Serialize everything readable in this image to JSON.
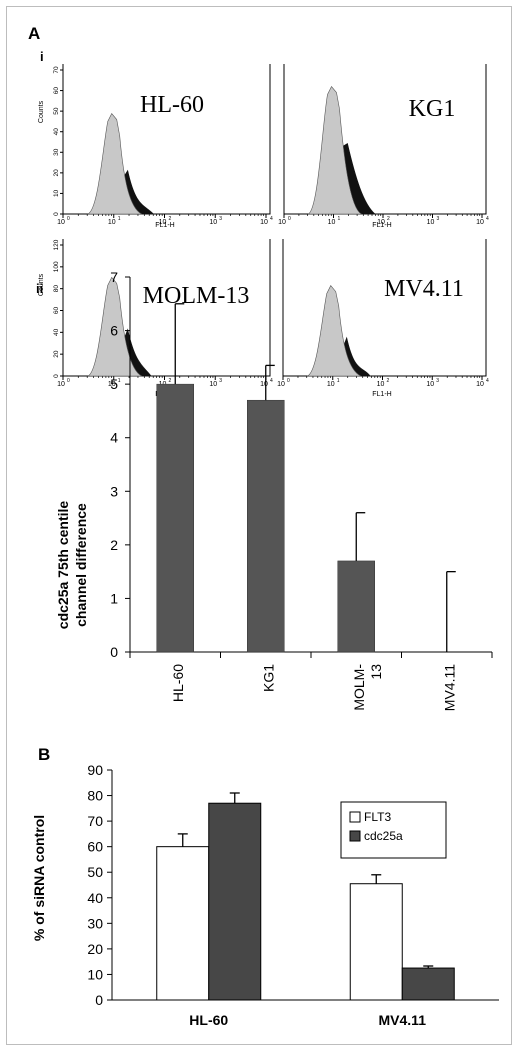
{
  "panel_labels": {
    "A": "A",
    "i": "i",
    "ii": "ii",
    "B": "B"
  },
  "histograms": {
    "x_axis_label": "FL1-H",
    "y_axis_label": "Counts",
    "x_ticks": [
      "10",
      "10",
      "10",
      "10",
      "10"
    ],
    "x_tick_exponents": [
      "0",
      "1",
      "2",
      "3",
      "4"
    ],
    "panels": [
      {
        "name": "HL-60",
        "y_ticks": [
          "0",
          "10",
          "20",
          "30",
          "40",
          "50",
          "60",
          "70"
        ]
      },
      {
        "name": "KG1",
        "y_ticks": []
      },
      {
        "name": "MOLM-13",
        "y_ticks": [
          "0",
          "20",
          "40",
          "60",
          "80",
          "100",
          "120"
        ]
      },
      {
        "name": "MV4.11",
        "y_ticks": []
      }
    ]
  },
  "chart_data": [
    {
      "type": "bar",
      "categories": [
        "HL-60",
        "KG1",
        "MOLM-\n13",
        "MV4.11"
      ],
      "values": [
        5.0,
        4.7,
        1.7,
        0.0
      ],
      "errors": [
        1.5,
        0.65,
        0.9,
        1.5
      ],
      "ylabel": "cdc25a 75th centile channel difference",
      "ylabel_lines": [
        "cdc25a 75th centile",
        "channel difference"
      ],
      "ylim": [
        0,
        7
      ],
      "yticks": [
        0,
        1,
        2,
        3,
        4,
        5,
        6,
        7
      ],
      "bar_color": "#555555",
      "grid": false
    },
    {
      "type": "bar",
      "categories": [
        "HL-60",
        "MV4.11"
      ],
      "series": [
        {
          "name": "FLT3",
          "values": [
            60,
            45.5
          ],
          "errors": [
            5,
            3.5
          ],
          "color": "#ffffff"
        },
        {
          "name": "cdc25a",
          "values": [
            77,
            12.5
          ],
          "errors": [
            4,
            0.8
          ],
          "color": "#474747"
        }
      ],
      "ylabel": "% of siRNA control",
      "ylim": [
        0,
        90
      ],
      "yticks": [
        0,
        10,
        20,
        30,
        40,
        50,
        60,
        70,
        80,
        90
      ],
      "legend_position": "top-right",
      "grid": false
    }
  ]
}
